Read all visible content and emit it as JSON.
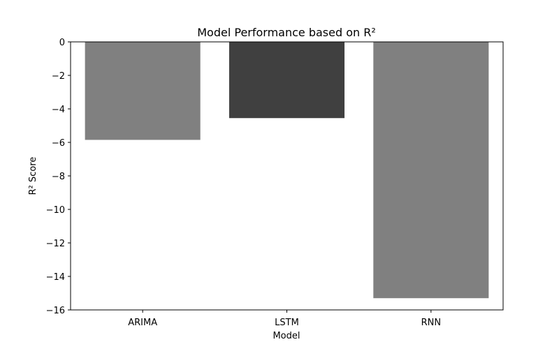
{
  "chart_data": {
    "type": "bar",
    "title": "Model Performance based on R²",
    "xlabel": "Model",
    "ylabel": "R² Score",
    "categories": [
      "ARIMA",
      "LSTM",
      "RNN"
    ],
    "values": [
      -5.85,
      -4.55,
      -15.3
    ],
    "bar_colors": [
      "#808080",
      "#404040",
      "#808080"
    ],
    "ylim": [
      -16,
      0
    ],
    "yticks": [
      0,
      -2,
      -4,
      -6,
      -8,
      -10,
      -12,
      -14,
      -16
    ],
    "ytick_labels": [
      "0",
      "−2",
      "−4",
      "−6",
      "−8",
      "−10",
      "−12",
      "−14",
      "−16"
    ],
    "grid": false,
    "legend": "none"
  }
}
